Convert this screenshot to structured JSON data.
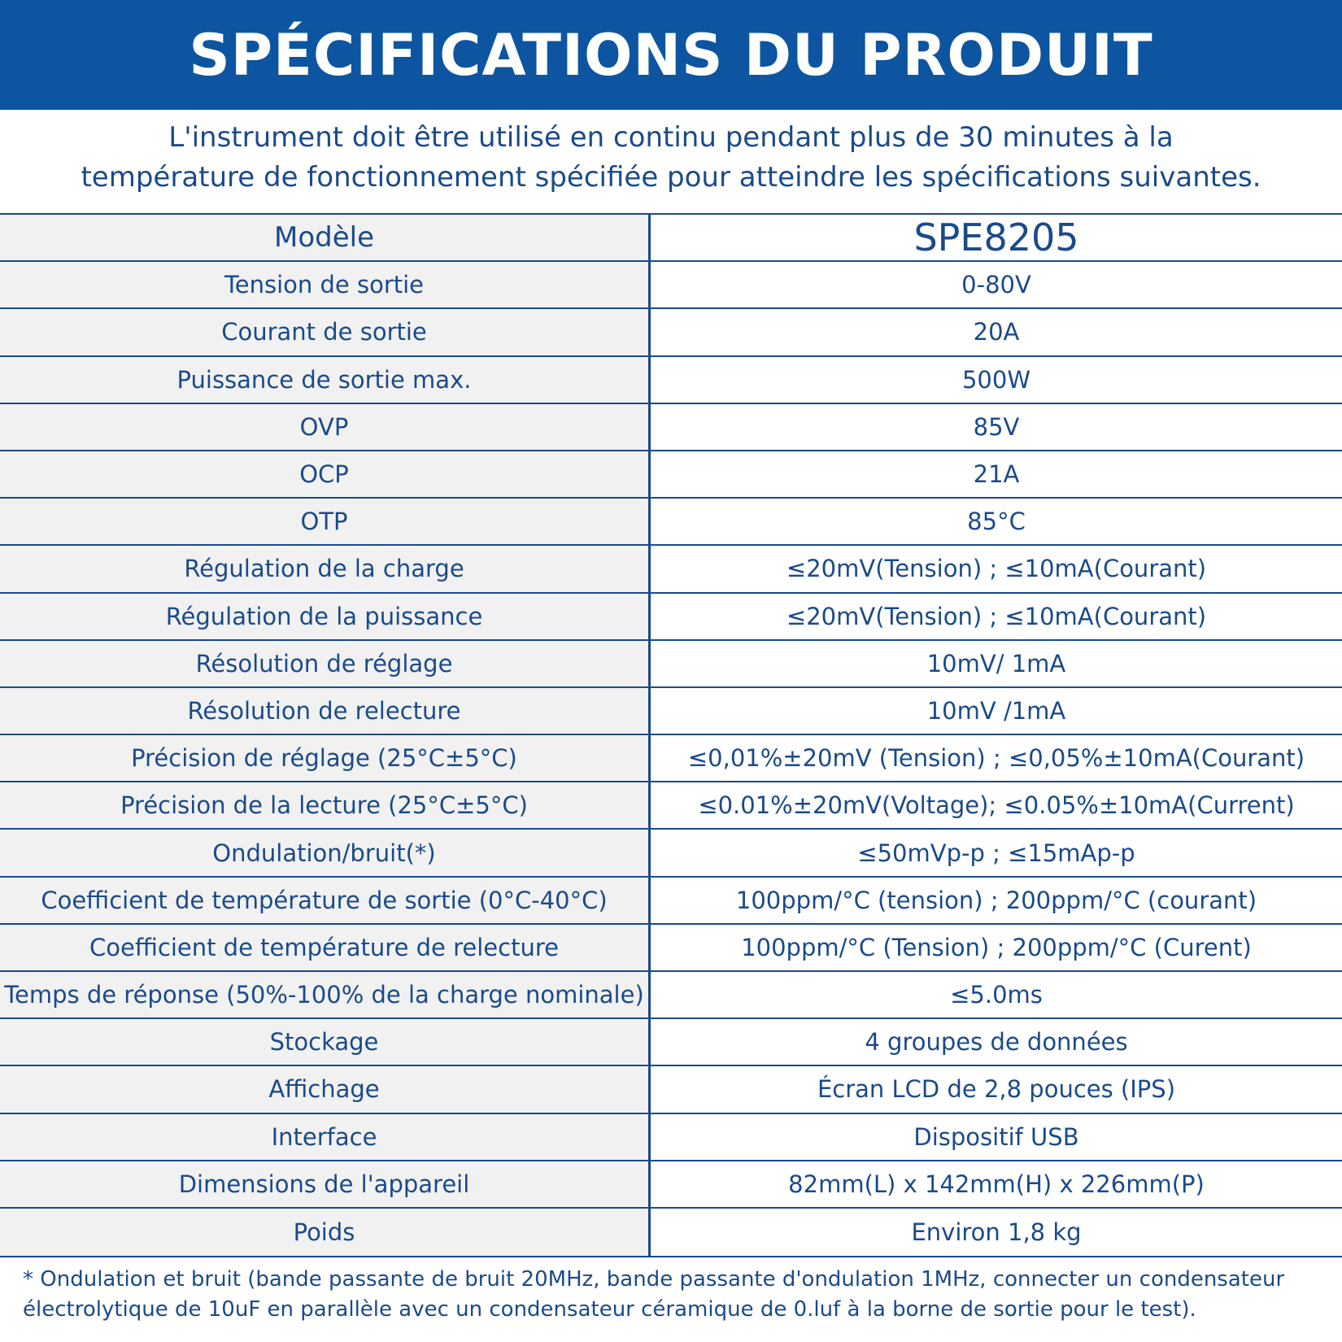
{
  "header": {
    "title": "SPÉCIFICATIONS DU PRODUIT"
  },
  "intro": {
    "line1": "L'instrument doit être utilisé en continu pendant plus de 30 minutes à la",
    "line2": "température de fonctionnement spécifiée pour atteindre les spécifications suivantes."
  },
  "table": {
    "header": {
      "label": "Modèle",
      "value": "SPE8205"
    },
    "rows": [
      {
        "label": "Tension de sortie",
        "value": "0-80V"
      },
      {
        "label": "Courant de sortie",
        "value": "20A"
      },
      {
        "label": "Puissance de sortie max.",
        "value": "500W"
      },
      {
        "label": "OVP",
        "value": "85V"
      },
      {
        "label": "OCP",
        "value": "21A"
      },
      {
        "label": "OTP",
        "value": "85°C"
      },
      {
        "label": "Régulation de la charge",
        "value": "≤20mV(Tension) ; ≤10mA(Courant)"
      },
      {
        "label": "Régulation de la puissance",
        "value": "≤20mV(Tension) ; ≤10mA(Courant)"
      },
      {
        "label": "Résolution de réglage",
        "value": "10mV/ 1mA"
      },
      {
        "label": "Résolution de relecture",
        "value": "10mV /1mA"
      },
      {
        "label": "Précision de réglage (25°C±5°C)",
        "value": "≤0,01%±20mV (Tension) ; ≤0,05%±10mA(Courant)"
      },
      {
        "label": "Précision de la lecture (25°C±5°C)",
        "value": "≤0.01%±20mV(Voltage); ≤0.05%±10mA(Current)"
      },
      {
        "label": "Ondulation/bruit(*)",
        "value": "≤50mVp-p ; ≤15mAp-p"
      },
      {
        "label": "Coefficient de température de sortie (0°C-40°C)",
        "value": "100ppm/°C (tension) ; 200ppm/°C (courant)"
      },
      {
        "label": "Coefficient de température de relecture",
        "value": "100ppm/°C (Tension) ; 200ppm/°C (Curent)"
      },
      {
        "label": "Temps de réponse (50%-100% de la charge nominale)",
        "value": "≤5.0ms"
      },
      {
        "label": "Stockage",
        "value": "4 groupes de données"
      },
      {
        "label": "Affichage",
        "value": "Écran LCD de 2,8 pouces (IPS)"
      },
      {
        "label": "Interface",
        "value": "Dispositif USB"
      },
      {
        "label": "Dimensions de l'appareil",
        "value": "82mm(L) x 142mm(H) x 226mm(P)"
      },
      {
        "label": "Poids",
        "value": "Environ 1,8 kg"
      }
    ]
  },
  "footnote": {
    "line1": "* Ondulation et bruit (bande passante de bruit 20MHz, bande passante d'ondulation 1MHz, connecter un condensateur",
    "line2": "électrolytique de 10uF en parallèle avec un condensateur céramique de 0.luf à la borne de sortie pour le test)."
  }
}
